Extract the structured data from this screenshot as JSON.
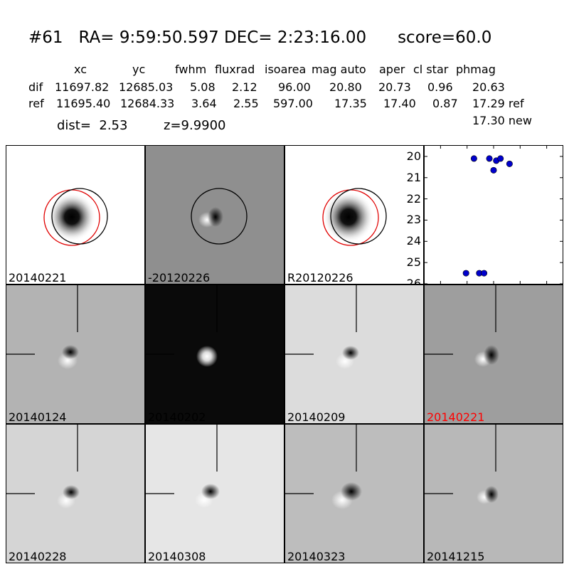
{
  "header": {
    "id": "#61",
    "ra": "RA= 9:59:50.597",
    "dec": "DEC= 2:23:16.00",
    "score": "score=60.0"
  },
  "columns": [
    "xc",
    "yc",
    "fwhm",
    "fluxrad",
    "isoarea",
    "mag auto",
    "aper",
    "cl star",
    "phmag"
  ],
  "rows": [
    {
      "label": "dif",
      "values": [
        "11697.82",
        "12685.03",
        "5.08",
        "2.12",
        "96.00",
        "20.80",
        "20.73",
        "0.96",
        "20.63"
      ]
    },
    {
      "label": "ref",
      "values": [
        "11695.40",
        "12684.33",
        "3.64",
        "2.55",
        "597.00",
        "17.35",
        "17.40",
        "0.87",
        "17.29 ref"
      ]
    }
  ],
  "extra_phmag": "17.30 new",
  "dist": "dist=  2.53",
  "z": "z=9.9900",
  "panels": [
    {
      "label": "20140221",
      "bg": "#ffffff",
      "label_color": "#000000"
    },
    {
      "label": "-20120226",
      "bg": "#8f8f8f",
      "label_color": "#000000"
    },
    {
      "label": "R20120226",
      "bg": "#ffffff",
      "label_color": "#000000"
    },
    {
      "label": "20140124",
      "bg": "#b3b3b3",
      "label_color": "#000000"
    },
    {
      "label": "20140202",
      "bg": "#0a0a0a",
      "label_color": "#000000"
    },
    {
      "label": "20140209",
      "bg": "#dcdcdc",
      "label_color": "#000000"
    },
    {
      "label": "20140221",
      "bg": "#9e9e9e",
      "label_color": "#ff0000"
    },
    {
      "label": "20140228",
      "bg": "#d5d5d5",
      "label_color": "#000000"
    },
    {
      "label": "20140308",
      "bg": "#e6e6e6",
      "label_color": "#000000"
    },
    {
      "label": "20140323",
      "bg": "#bdbdbd",
      "label_color": "#000000"
    },
    {
      "label": "20141215",
      "bg": "#b8b8b8",
      "label_color": "#000000"
    }
  ],
  "chart_data": {
    "type": "scatter",
    "xlim": [
      -130,
      130
    ],
    "ylim": [
      26,
      19.5
    ],
    "x_ticks": [
      "-100",
      "-50",
      "0",
      "50",
      "100"
    ],
    "y_ticks": [
      "20",
      "21",
      "22",
      "23",
      "24",
      "25",
      "26"
    ],
    "marker_color": "#0000cc",
    "points": [
      {
        "x": -37,
        "y": 20.1
      },
      {
        "x": -8,
        "y": 20.1
      },
      {
        "x": 5,
        "y": 20.2
      },
      {
        "x": 13,
        "y": 20.1
      },
      {
        "x": 30,
        "y": 20.35
      },
      {
        "x": 0,
        "y": 20.65
      },
      {
        "x": -52,
        "y": 25.5
      },
      {
        "x": -27,
        "y": 25.5
      },
      {
        "x": -18,
        "y": 25.5
      }
    ]
  }
}
